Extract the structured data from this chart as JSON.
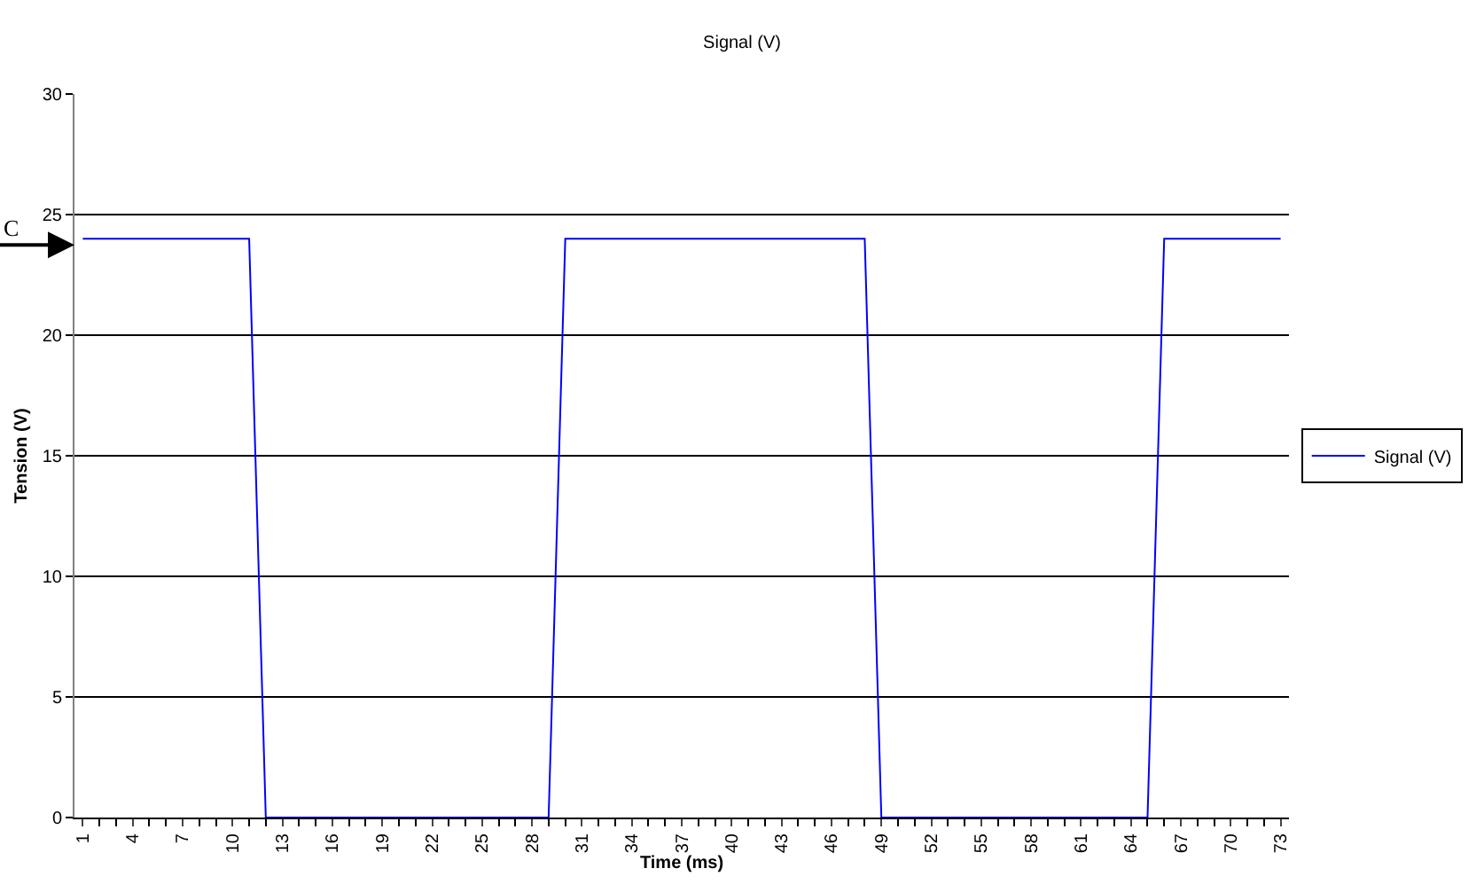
{
  "chart_data": {
    "type": "line",
    "title": "Signal (V)",
    "xlabel": "Time (ms)",
    "ylabel": "Tension (V)",
    "categories": [
      "1",
      null,
      null,
      "4",
      null,
      null,
      "7",
      null,
      null,
      "10",
      null,
      null,
      "13",
      null,
      null,
      "16",
      null,
      null,
      "19",
      null,
      null,
      "22",
      null,
      null,
      "25",
      null,
      null,
      "28",
      null,
      null,
      "31",
      null,
      null,
      "34",
      null,
      null,
      "37",
      null,
      null,
      "40",
      null,
      null,
      "43",
      null,
      null,
      "46",
      null,
      null,
      "49",
      null,
      null,
      "52",
      null,
      null,
      "55",
      null,
      null,
      "58",
      null,
      null,
      "61",
      null,
      null,
      "64",
      null,
      null,
      "67",
      null,
      null,
      "70",
      null,
      null,
      "73"
    ],
    "series": [
      {
        "name": "Signal (V)",
        "color": "#0000ff",
        "values": [
          24,
          24,
          24,
          24,
          24,
          24,
          24,
          24,
          24,
          24,
          24,
          0,
          0,
          0,
          0,
          0,
          0,
          0,
          0,
          0,
          0,
          0,
          0,
          0,
          0,
          0,
          0,
          0,
          0,
          24,
          24,
          24,
          24,
          24,
          24,
          24,
          24,
          24,
          24,
          24,
          24,
          24,
          24,
          24,
          24,
          24,
          24,
          24,
          0,
          0,
          0,
          0,
          0,
          0,
          0,
          0,
          0,
          0,
          0,
          0,
          0,
          0,
          0,
          0,
          0,
          24,
          24,
          24,
          24,
          24,
          24,
          24,
          24
        ]
      }
    ],
    "ylim": [
      0,
      30
    ],
    "yticks": [
      0,
      5,
      10,
      15,
      20,
      25,
      30
    ],
    "grid": "y",
    "legend": "right",
    "marker": "none",
    "line_style": "solid",
    "annotations": [
      "C"
    ]
  }
}
